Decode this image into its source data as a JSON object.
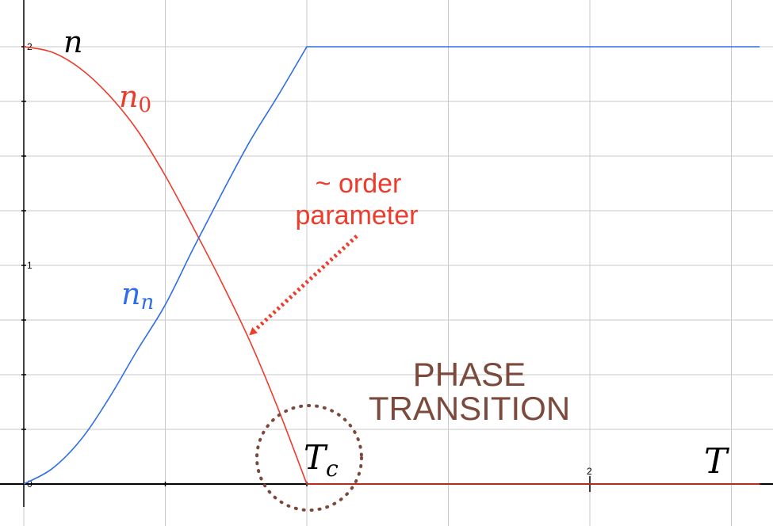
{
  "chart_data": {
    "type": "line",
    "x_label": "T",
    "y_label": "n",
    "xlim": [
      0,
      2.6
    ],
    "ylim": [
      0,
      2
    ],
    "grid": true,
    "x_ticks": [
      {
        "value": 2,
        "label": "2"
      }
    ],
    "y_ticks": [
      {
        "value": 2,
        "label": "2"
      },
      {
        "value": 1,
        "label": "1"
      },
      {
        "value": 0,
        "label": "0"
      }
    ],
    "critical_temperature": 1,
    "series": [
      {
        "name": "n_0",
        "color": "#ee3b2c",
        "x": [
          0,
          0.1,
          0.2,
          0.3,
          0.4,
          0.5,
          0.6,
          0.7,
          0.8,
          0.9,
          1.0,
          2.6
        ],
        "y": [
          2.0,
          1.975,
          1.9,
          1.78,
          1.62,
          1.41,
          1.17,
          0.92,
          0.65,
          0.34,
          0,
          0
        ]
      },
      {
        "name": "n_n",
        "color": "#2f6ee6",
        "x": [
          0,
          0.1,
          0.2,
          0.3,
          0.4,
          0.5,
          0.6,
          0.7,
          0.8,
          0.9,
          1.0,
          2.6
        ],
        "y": [
          0,
          0.07,
          0.2,
          0.39,
          0.61,
          0.82,
          1.08,
          1.33,
          1.57,
          1.78,
          2.0,
          2.0
        ]
      }
    ],
    "labels": {
      "n": "n",
      "n0_base": "n",
      "n0_sub": "0",
      "nn_base": "n",
      "nn_sub": "n",
      "tc_base": "T",
      "tc_sub": "c",
      "T": "T"
    },
    "annotations": {
      "order_line1": "~ order",
      "order_line2": "parameter",
      "phase_line1": "PHASE",
      "phase_line2": "TRANSITION"
    },
    "colors": {
      "red": "#ee3b2c",
      "blue": "#2f6ee6",
      "brown": "#7b4a3c"
    }
  }
}
